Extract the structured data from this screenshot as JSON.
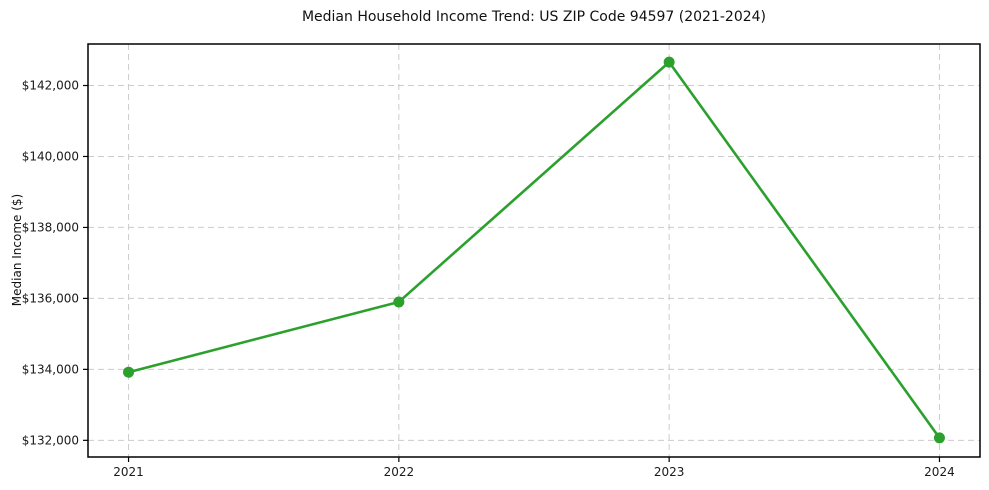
{
  "chart_data": {
    "type": "line",
    "title": "Median Household Income Trend: US ZIP Code 94597 (2021-2024)",
    "xlabel": "",
    "ylabel": "Median Income ($)",
    "x": [
      2021,
      2022,
      2023,
      2024
    ],
    "x_tick_labels": [
      "2021",
      "2022",
      "2023",
      "2024"
    ],
    "series": [
      {
        "name": "median-household-income",
        "values": [
          133920,
          135900,
          142660,
          132070
        ],
        "color": "#2ca02c",
        "marker": "circle"
      }
    ],
    "y_ticks": [
      132000,
      134000,
      136000,
      138000,
      140000,
      142000
    ],
    "y_tick_labels": [
      "$132,000",
      "$134,000",
      "$136,000",
      "$138,000",
      "$140,000",
      "$142,000"
    ],
    "xlim": [
      2020.85,
      2024.15
    ],
    "ylim": [
      131530,
      143170
    ],
    "grid": "dashed-both-axes",
    "legend": "none",
    "colors": {
      "line": "#2ca02c",
      "grid": "#cccccc",
      "axis": "#000000",
      "text": "#1a1a1a",
      "background": "#ffffff"
    }
  }
}
